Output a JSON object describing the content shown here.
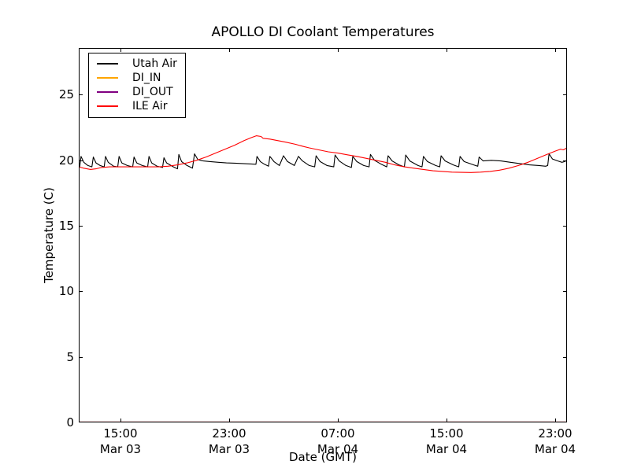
{
  "window": {
    "background": "#ffffff"
  },
  "chart_data": {
    "type": "line",
    "title": "APOLLO DI Coolant Temperatures",
    "xlabel": "Date (GMT)",
    "ylabel": "Temperature (C)",
    "grid": false,
    "legend_position": "upper left",
    "x_unit": "hours since Mar 03 00:00 GMT",
    "xlim": [
      11.93,
      47.87
    ],
    "ylim": [
      0,
      28.57
    ],
    "yticks": [
      0,
      5,
      10,
      15,
      20,
      25
    ],
    "xticks": [
      {
        "value": 15,
        "time": "15:00",
        "date": "Mar 03"
      },
      {
        "value": 23,
        "time": "23:00",
        "date": "Mar 03"
      },
      {
        "value": 31,
        "time": "07:00",
        "date": "Mar 04"
      },
      {
        "value": 39,
        "time": "15:00",
        "date": "Mar 04"
      },
      {
        "value": 47,
        "time": "23:00",
        "date": "Mar 04"
      }
    ],
    "series": [
      {
        "name": "Utah Air",
        "color": "#000000",
        "points": [
          [
            11.93,
            19.55
          ],
          [
            12.0,
            19.5
          ],
          [
            12.1,
            20.3
          ],
          [
            12.3,
            19.85
          ],
          [
            12.6,
            19.6
          ],
          [
            12.9,
            19.5
          ],
          [
            13.0,
            20.25
          ],
          [
            13.2,
            19.8
          ],
          [
            13.5,
            19.6
          ],
          [
            13.8,
            19.5
          ],
          [
            13.9,
            20.3
          ],
          [
            14.1,
            19.85
          ],
          [
            14.5,
            19.55
          ],
          [
            14.8,
            19.5
          ],
          [
            14.9,
            20.3
          ],
          [
            15.1,
            19.8
          ],
          [
            15.5,
            19.6
          ],
          [
            15.9,
            19.5
          ],
          [
            16.0,
            20.25
          ],
          [
            16.2,
            19.8
          ],
          [
            16.6,
            19.6
          ],
          [
            17.0,
            19.5
          ],
          [
            17.1,
            20.3
          ],
          [
            17.3,
            19.8
          ],
          [
            17.7,
            19.55
          ],
          [
            18.1,
            19.45
          ],
          [
            18.2,
            20.2
          ],
          [
            18.4,
            19.8
          ],
          [
            18.9,
            19.5
          ],
          [
            19.2,
            19.35
          ],
          [
            19.3,
            20.45
          ],
          [
            19.5,
            19.9
          ],
          [
            19.9,
            19.6
          ],
          [
            20.3,
            19.4
          ],
          [
            20.45,
            20.5
          ],
          [
            20.7,
            20.05
          ],
          [
            21.1,
            19.95
          ],
          [
            21.6,
            19.9
          ],
          [
            22.2,
            19.85
          ],
          [
            22.8,
            19.8
          ],
          [
            23.4,
            19.78
          ],
          [
            24.0,
            19.75
          ],
          [
            24.6,
            19.72
          ],
          [
            24.97,
            19.7
          ],
          [
            25.05,
            20.3
          ],
          [
            25.3,
            19.9
          ],
          [
            25.6,
            19.7
          ],
          [
            25.9,
            19.55
          ],
          [
            26.0,
            20.3
          ],
          [
            26.3,
            19.9
          ],
          [
            26.7,
            19.6
          ],
          [
            27.0,
            20.35
          ],
          [
            27.3,
            19.9
          ],
          [
            27.8,
            19.6
          ],
          [
            28.1,
            20.3
          ],
          [
            28.4,
            19.95
          ],
          [
            28.9,
            19.6
          ],
          [
            29.3,
            19.5
          ],
          [
            29.4,
            20.35
          ],
          [
            29.7,
            19.9
          ],
          [
            30.2,
            19.6
          ],
          [
            30.7,
            19.5
          ],
          [
            30.8,
            20.4
          ],
          [
            31.1,
            19.95
          ],
          [
            31.6,
            19.6
          ],
          [
            32.0,
            19.45
          ],
          [
            32.1,
            20.3
          ],
          [
            32.4,
            19.9
          ],
          [
            32.9,
            19.6
          ],
          [
            33.3,
            19.5
          ],
          [
            33.4,
            20.45
          ],
          [
            33.7,
            20.0
          ],
          [
            34.2,
            19.7
          ],
          [
            34.6,
            19.5
          ],
          [
            34.7,
            20.35
          ],
          [
            35.0,
            19.95
          ],
          [
            35.5,
            19.65
          ],
          [
            35.9,
            19.5
          ],
          [
            36.0,
            20.4
          ],
          [
            36.3,
            19.95
          ],
          [
            36.9,
            19.6
          ],
          [
            37.2,
            19.5
          ],
          [
            37.3,
            20.3
          ],
          [
            37.6,
            19.9
          ],
          [
            38.2,
            19.6
          ],
          [
            38.5,
            19.5
          ],
          [
            38.6,
            20.35
          ],
          [
            38.9,
            19.95
          ],
          [
            39.5,
            19.65
          ],
          [
            39.9,
            19.5
          ],
          [
            40.0,
            20.3
          ],
          [
            40.3,
            19.9
          ],
          [
            41.0,
            19.65
          ],
          [
            41.3,
            19.55
          ],
          [
            41.4,
            20.25
          ],
          [
            41.7,
            19.95
          ],
          [
            42.3,
            20.0
          ],
          [
            43.0,
            19.95
          ],
          [
            43.7,
            19.85
          ],
          [
            44.4,
            19.75
          ],
          [
            45.1,
            19.65
          ],
          [
            45.8,
            19.6
          ],
          [
            46.3,
            19.55
          ],
          [
            46.45,
            19.6
          ],
          [
            46.55,
            20.5
          ],
          [
            46.8,
            20.1
          ],
          [
            47.2,
            19.95
          ],
          [
            47.5,
            19.85
          ],
          [
            47.7,
            19.9
          ],
          [
            47.87,
            20.0
          ]
        ]
      },
      {
        "name": "DI_IN",
        "color": "#ffa500",
        "points": [
          [
            11.93,
            0
          ],
          [
            47.87,
            0
          ]
        ]
      },
      {
        "name": "DI_OUT",
        "color": "#800080",
        "points": [
          [
            11.93,
            0
          ],
          [
            47.87,
            0
          ]
        ]
      },
      {
        "name": "ILE Air",
        "color": "#ff0000",
        "points": [
          [
            11.93,
            19.5
          ],
          [
            12.3,
            19.4
          ],
          [
            12.8,
            19.3
          ],
          [
            13.2,
            19.35
          ],
          [
            13.6,
            19.45
          ],
          [
            14.2,
            19.5
          ],
          [
            15.0,
            19.5
          ],
          [
            16.0,
            19.5
          ],
          [
            17.0,
            19.5
          ],
          [
            17.8,
            19.5
          ],
          [
            18.5,
            19.55
          ],
          [
            19.2,
            19.65
          ],
          [
            19.9,
            19.8
          ],
          [
            20.6,
            20.0
          ],
          [
            21.3,
            20.25
          ],
          [
            22.0,
            20.55
          ],
          [
            22.7,
            20.85
          ],
          [
            23.4,
            21.15
          ],
          [
            24.1,
            21.5
          ],
          [
            24.6,
            21.72
          ],
          [
            25.0,
            21.87
          ],
          [
            25.35,
            21.82
          ],
          [
            25.5,
            21.68
          ],
          [
            26.0,
            21.62
          ],
          [
            26.6,
            21.5
          ],
          [
            27.2,
            21.38
          ],
          [
            27.9,
            21.22
          ],
          [
            28.5,
            21.05
          ],
          [
            28.9,
            20.95
          ],
          [
            29.6,
            20.8
          ],
          [
            30.3,
            20.65
          ],
          [
            31.0,
            20.55
          ],
          [
            31.7,
            20.42
          ],
          [
            32.4,
            20.3
          ],
          [
            33.1,
            20.15
          ],
          [
            33.8,
            20.0
          ],
          [
            34.5,
            19.85
          ],
          [
            35.2,
            19.65
          ],
          [
            35.9,
            19.5
          ],
          [
            36.6,
            19.4
          ],
          [
            37.3,
            19.3
          ],
          [
            38.0,
            19.2
          ],
          [
            38.7,
            19.15
          ],
          [
            39.4,
            19.1
          ],
          [
            40.1,
            19.08
          ],
          [
            40.8,
            19.07
          ],
          [
            41.5,
            19.1
          ],
          [
            42.2,
            19.15
          ],
          [
            42.9,
            19.25
          ],
          [
            43.6,
            19.4
          ],
          [
            44.3,
            19.6
          ],
          [
            45.0,
            19.85
          ],
          [
            45.7,
            20.15
          ],
          [
            46.4,
            20.45
          ],
          [
            47.0,
            20.7
          ],
          [
            47.4,
            20.85
          ],
          [
            47.6,
            20.8
          ],
          [
            47.87,
            20.95
          ]
        ]
      }
    ]
  }
}
